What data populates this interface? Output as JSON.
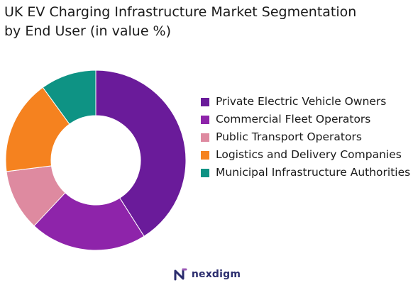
{
  "title_lines": [
    "UK EV Charging Infrastructure Market Segmentation",
    "by End User (in value %)"
  ],
  "brand": {
    "name": "nexdigm",
    "color": "#2b2d6e",
    "accent": "#9b59b6"
  },
  "chart_data": {
    "type": "pie",
    "donut": true,
    "title": "UK EV Charging Infrastructure Market Segmentation by End User (in value %)",
    "legend_position": "right",
    "categories": [
      "Private Electric Vehicle Owners",
      "Commercial Fleet Operators",
      "Public Transport Operators",
      "Logistics and Delivery Companies",
      "Municipal Infrastructure Authorities"
    ],
    "values": [
      41,
      21,
      11,
      17,
      10
    ],
    "colors": [
      "#6a1b9a",
      "#8e24aa",
      "#de8aa0",
      "#f5821f",
      "#0e9384"
    ]
  }
}
